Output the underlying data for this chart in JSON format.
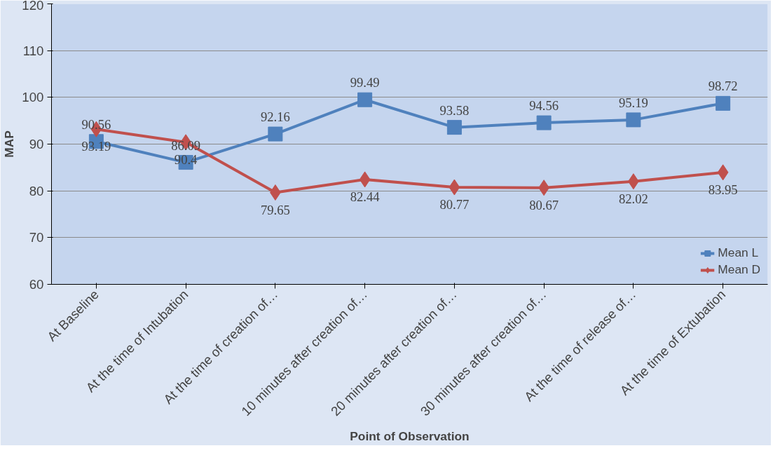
{
  "chart_data": {
    "type": "line",
    "xlabel": "Point of Observation",
    "ylabel": "MAP",
    "categories": [
      "At Baseline",
      "At the time of Intubation",
      "At the time of creation of…",
      "10 minutes after creation of…",
      "20 minutes after creation of…",
      "30 minutes after creation of…",
      "At the time of release of…",
      "At the time of Extubation"
    ],
    "series": [
      {
        "name": "Mean L",
        "color": "#4f81bd",
        "marker": "square",
        "values": [
          90.56,
          86.09,
          92.16,
          99.49,
          93.58,
          94.56,
          95.19,
          98.72
        ]
      },
      {
        "name": "Mean D",
        "color": "#c0504d",
        "marker": "diamond",
        "values": [
          93.19,
          90.4,
          79.65,
          82.44,
          80.77,
          80.67,
          82.02,
          83.95
        ]
      }
    ],
    "ylim": [
      60,
      120
    ],
    "yticks": [
      60,
      70,
      80,
      90,
      100,
      110,
      120
    ],
    "grid": "y",
    "legend": "bottom right",
    "data_labels": true,
    "line_style": "solid"
  }
}
